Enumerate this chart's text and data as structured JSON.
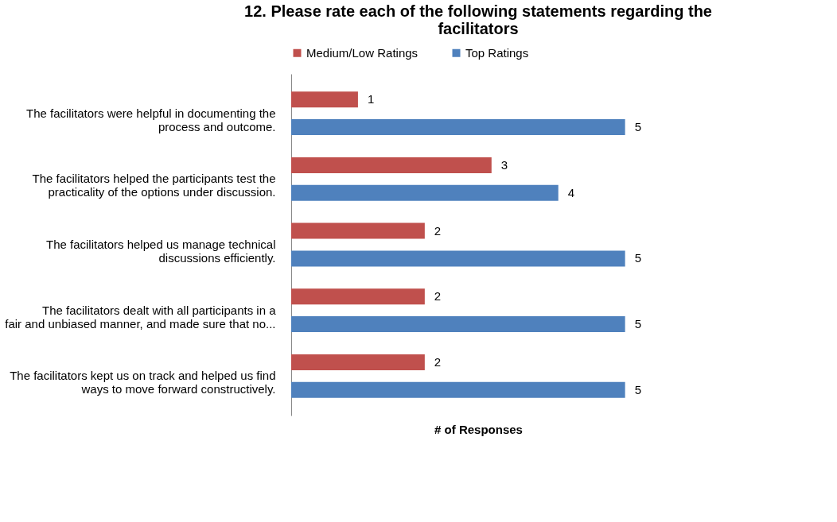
{
  "chart_data": {
    "type": "bar",
    "orientation": "horizontal",
    "title": "12. Please rate each of the following statements regarding the facilitators",
    "xlabel": "# of Responses",
    "categories": [
      "The facilitators were helpful in documenting the process and outcome.",
      "The facilitators helped the participants test the practicality of the options under discussion.",
      "The facilitators helped us manage technical discussions efficiently.",
      "The facilitators dealt with all participants in a fair and unbiased manner, and made sure that no...",
      "The facilitators kept us on track and helped us find ways to move forward constructively."
    ],
    "series": [
      {
        "name": "Medium/Low Ratings",
        "color": "#c0504d",
        "values": [
          1,
          3,
          2,
          2,
          2
        ]
      },
      {
        "name": "Top Ratings",
        "color": "#4f81bd",
        "values": [
          5,
          4,
          5,
          5,
          5
        ]
      }
    ],
    "data_labels": true,
    "legend": "top",
    "tick_labels": "y"
  }
}
